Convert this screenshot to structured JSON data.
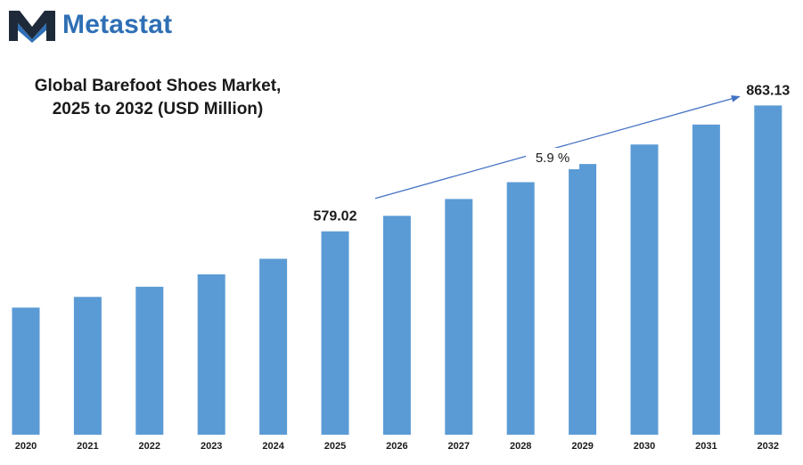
{
  "brand": {
    "name": "Metastat",
    "icon": "metastat-m-logo-icon",
    "color_primary": "#2f6fb5",
    "color_dark": "#1e2a3a"
  },
  "chart_data": {
    "type": "bar",
    "title_line1": "Global Barefoot Shoes Market,",
    "title_line2": "2025 to 2032 (USD Million)",
    "categories": [
      "2020",
      "2021",
      "2022",
      "2023",
      "2024",
      "2025",
      "2026",
      "2027",
      "2028",
      "2029",
      "2030",
      "2031",
      "2032"
    ],
    "values": [
      407,
      431,
      454,
      482,
      517,
      579.02,
      614,
      652,
      690,
      731,
      775,
      820,
      863.13
    ],
    "labeled_points": [
      {
        "category": "2025",
        "label": "579.02"
      },
      {
        "category": "2032",
        "label": "863.13"
      }
    ],
    "growth_annotation": {
      "label": "5.9 %",
      "from": "2025",
      "to": "2032"
    },
    "ylim": [
      120,
      880
    ],
    "grid": false,
    "legend": "none",
    "bar_color": "#5b9bd5",
    "arrow_color": "#4472c4"
  }
}
